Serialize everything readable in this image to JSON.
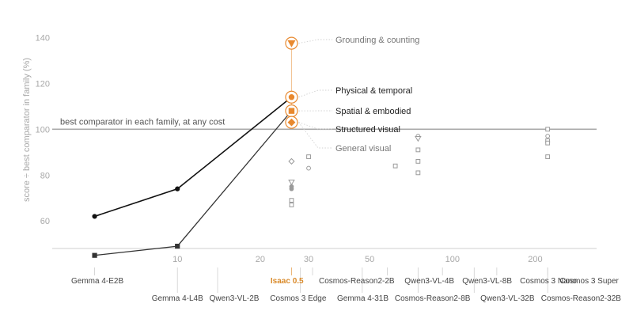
{
  "chart_data": {
    "type": "line",
    "title": "",
    "xlabel": "",
    "ylabel": "score ÷ best comparator in family (%)",
    "xscale": "log",
    "x_ticks": [
      10,
      20,
      30,
      50,
      100,
      200
    ],
    "x_tick_labels": [
      "10",
      "20",
      "30",
      "50",
      "100",
      "200"
    ],
    "y_ticks": [
      60,
      80,
      100,
      120,
      140
    ],
    "y_tick_labels": [
      "60",
      "80",
      "100",
      "120",
      "140"
    ],
    "ylim": [
      48,
      146
    ],
    "xlim": [
      3.6,
      330
    ],
    "reference_line": {
      "y": 100,
      "label": "best comparator in each family, at any cost"
    },
    "series": [
      {
        "name": "Physical & temporal",
        "x": [
          5,
          10,
          26
        ],
        "y": [
          62,
          74,
          114
        ],
        "color": "#111111"
      },
      {
        "name": "",
        "x": [
          5,
          10,
          26
        ],
        "y": [
          45,
          49,
          108
        ],
        "color": "#333333"
      }
    ],
    "highlight": {
      "model": "Isaac 0.5",
      "x": 26,
      "color": "#e8892f",
      "points": [
        {
          "category": "Grounding & counting",
          "y": 137.5,
          "marker": "triangle-down"
        },
        {
          "category": "Physical & temporal",
          "y": 114,
          "marker": "circle"
        },
        {
          "category": "Spatial & embodied",
          "y": 108,
          "marker": "square"
        },
        {
          "category": "Structured visual",
          "y": 103,
          "marker": "diamond"
        },
        {
          "category": "General visual",
          "y": 103,
          "marker": "none"
        }
      ]
    },
    "categories": [
      {
        "label": "Grounding & counting",
        "emphasis": false
      },
      {
        "label": "Physical & temporal",
        "emphasis": true
      },
      {
        "label": "Spatial & embodied",
        "emphasis": true
      },
      {
        "label": "Structured visual",
        "emphasis": true
      },
      {
        "label": "General visual",
        "emphasis": false
      }
    ],
    "comparator_points": [
      {
        "x": 26,
        "y": 86,
        "marker": "diamond"
      },
      {
        "x": 26,
        "y": 77,
        "marker": "triangle-down"
      },
      {
        "x": 26,
        "y": 75,
        "marker": "circle"
      },
      {
        "x": 26,
        "y": 74,
        "marker": "circle"
      },
      {
        "x": 26,
        "y": 69,
        "marker": "square"
      },
      {
        "x": 26,
        "y": 67,
        "marker": "square"
      },
      {
        "x": 30,
        "y": 88,
        "marker": "square"
      },
      {
        "x": 30,
        "y": 83,
        "marker": "circle"
      },
      {
        "x": 62,
        "y": 84,
        "marker": "square"
      },
      {
        "x": 75,
        "y": 97,
        "marker": "circle"
      },
      {
        "x": 75,
        "y": 96,
        "marker": "triangle-down"
      },
      {
        "x": 75,
        "y": 91,
        "marker": "square"
      },
      {
        "x": 75,
        "y": 86,
        "marker": "square"
      },
      {
        "x": 75,
        "y": 81,
        "marker": "square"
      },
      {
        "x": 222,
        "y": 100,
        "marker": "square"
      },
      {
        "x": 222,
        "y": 97,
        "marker": "circle"
      },
      {
        "x": 222,
        "y": 95,
        "marker": "square"
      },
      {
        "x": 222,
        "y": 94,
        "marker": "square"
      },
      {
        "x": 222,
        "y": 88,
        "marker": "square"
      }
    ],
    "models": [
      {
        "name": "Gemma 4-E2B",
        "x": 5,
        "row": 0,
        "highlight": false
      },
      {
        "name": "Gemma 4-L4B",
        "x": 10,
        "row": 1,
        "highlight": false
      },
      {
        "name": "Qwen3-VL-2B",
        "x": 14,
        "row": 1,
        "highlight": false
      },
      {
        "name": "Isaac 0.5",
        "x": 26,
        "row": 0,
        "highlight": true
      },
      {
        "name": "Cosmos 3 Edge",
        "x": 28,
        "row": 1,
        "highlight": false
      },
      {
        "name": "Cosmos-Reason2-2B",
        "x": 31,
        "row": 0,
        "highlight": false
      },
      {
        "name": "Gemma 4-31B",
        "x": 47,
        "row": 1,
        "highlight": false
      },
      {
        "name": "Qwen3-VL-4B",
        "x": 58,
        "row": 0,
        "highlight": false
      },
      {
        "name": "Cosmos-Reason2-8B",
        "x": 75,
        "row": 1,
        "highlight": false
      },
      {
        "name": "Qwen3-VL-8B",
        "x": 92,
        "row": 0,
        "highlight": false
      },
      {
        "name": "Qwen3-VL-32B",
        "x": 120,
        "row": 1,
        "highlight": false
      },
      {
        "name": "Cosmos 3 Nano",
        "x": 145,
        "row": 0,
        "highlight": false
      },
      {
        "name": "Cosmos-Reason2-32B",
        "x": 222,
        "row": 1,
        "highlight": false
      },
      {
        "name": "Cosmos 3 Super",
        "x": 222,
        "row": 0,
        "highlight": false
      }
    ],
    "grid": false,
    "legend": "inline-right-of-highlight"
  }
}
